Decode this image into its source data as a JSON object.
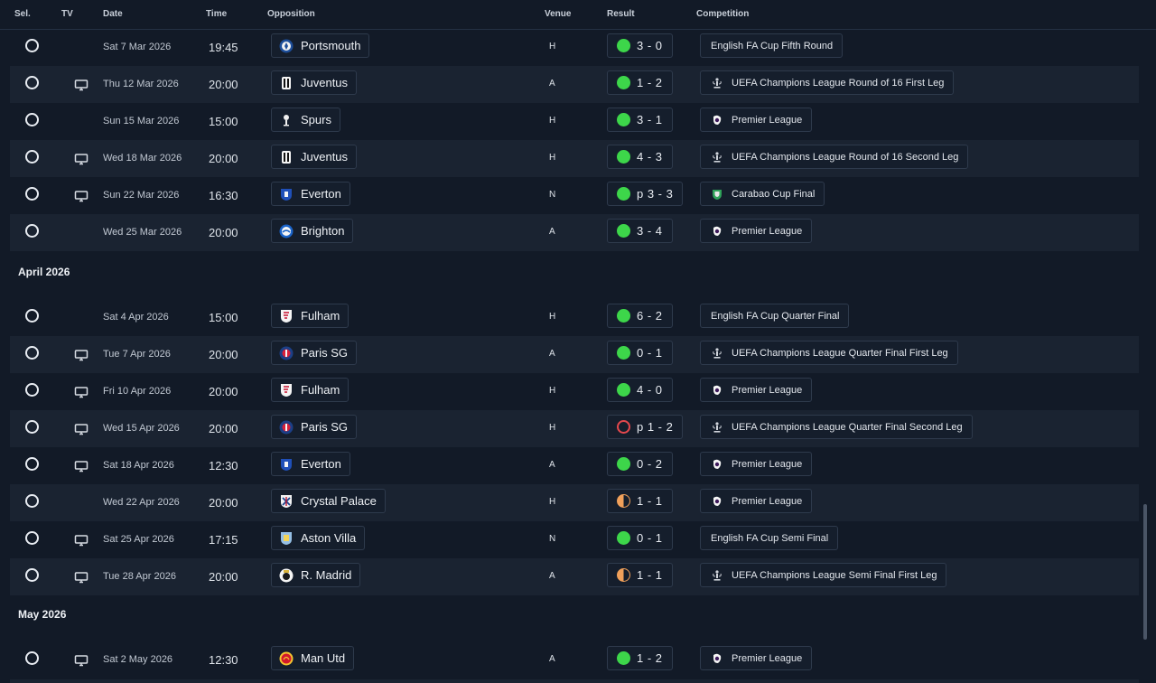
{
  "header": {
    "sel": "Sel.",
    "tv": "TV",
    "date": "Date",
    "time": "Time",
    "opposition": "Opposition",
    "venue": "Venue",
    "result": "Result",
    "competition": "Competition"
  },
  "months": [
    "April 2026",
    "May 2026"
  ],
  "colors": {
    "win": "#3dd64a",
    "loss": "#e5484d",
    "draw": "#f0a05a"
  },
  "fixtures": [
    {
      "tv": false,
      "date": "Sat 7 Mar 2026",
      "time": "19:45",
      "opponent": "Portsmouth",
      "crest": "portsmouth-crest",
      "venue": "H",
      "outcome": "win",
      "score": "3 - 0",
      "competition": "English FA Cup Fifth Round",
      "comp_icon": "none"
    },
    {
      "tv": true,
      "date": "Thu 12 Mar 2026",
      "time": "20:00",
      "opponent": "Juventus",
      "crest": "juventus-crest",
      "venue": "A",
      "outcome": "win",
      "score": "1 - 2",
      "competition": "UEFA Champions League Round of 16  First Leg",
      "comp_icon": "ucl"
    },
    {
      "tv": false,
      "date": "Sun 15 Mar 2026",
      "time": "15:00",
      "opponent": "Spurs",
      "crest": "spurs-crest",
      "venue": "H",
      "outcome": "win",
      "score": "3 - 1",
      "competition": "Premier League",
      "comp_icon": "pl"
    },
    {
      "tv": true,
      "date": "Wed 18 Mar 2026",
      "time": "20:00",
      "opponent": "Juventus",
      "crest": "juventus-crest",
      "venue": "H",
      "outcome": "win",
      "score": "4 - 3",
      "competition": "UEFA Champions League Round of 16  Second Leg",
      "comp_icon": "ucl"
    },
    {
      "tv": true,
      "date": "Sun 22 Mar 2026",
      "time": "16:30",
      "opponent": "Everton",
      "crest": "everton-crest",
      "venue": "N",
      "outcome": "win",
      "score": "p 3 - 3",
      "competition": "Carabao Cup Final",
      "comp_icon": "carabao"
    },
    {
      "tv": false,
      "date": "Wed 25 Mar 2026",
      "time": "20:00",
      "opponent": "Brighton",
      "crest": "brighton-crest",
      "venue": "A",
      "outcome": "win",
      "score": "3 - 4",
      "competition": "Premier League",
      "comp_icon": "pl"
    },
    {
      "tv": false,
      "date": "Sat 4 Apr 2026",
      "time": "15:00",
      "opponent": "Fulham",
      "crest": "fulham-crest",
      "venue": "H",
      "outcome": "win",
      "score": "6 - 2",
      "competition": "English FA Cup Quarter Final",
      "comp_icon": "none"
    },
    {
      "tv": true,
      "date": "Tue 7 Apr 2026",
      "time": "20:00",
      "opponent": "Paris SG",
      "crest": "psg-crest",
      "venue": "A",
      "outcome": "win",
      "score": "0 - 1",
      "competition": "UEFA Champions League Quarter Final First Leg",
      "comp_icon": "ucl"
    },
    {
      "tv": true,
      "date": "Fri 10 Apr 2026",
      "time": "20:00",
      "opponent": "Fulham",
      "crest": "fulham-crest",
      "venue": "H",
      "outcome": "win",
      "score": "4 - 0",
      "competition": "Premier League",
      "comp_icon": "pl"
    },
    {
      "tv": true,
      "date": "Wed 15 Apr 2026",
      "time": "20:00",
      "opponent": "Paris SG",
      "crest": "psg-crest",
      "venue": "H",
      "outcome": "loss",
      "score": "p 1 - 2",
      "competition": "UEFA Champions League Quarter Final Second Leg",
      "comp_icon": "ucl"
    },
    {
      "tv": true,
      "date": "Sat 18 Apr 2026",
      "time": "12:30",
      "opponent": "Everton",
      "crest": "everton-crest",
      "venue": "A",
      "outcome": "win",
      "score": "0 - 2",
      "competition": "Premier League",
      "comp_icon": "pl"
    },
    {
      "tv": false,
      "date": "Wed 22 Apr 2026",
      "time": "20:00",
      "opponent": "Crystal Palace",
      "crest": "crystal-palace-crest",
      "venue": "H",
      "outcome": "draw",
      "score": "1 - 1",
      "competition": "Premier League",
      "comp_icon": "pl"
    },
    {
      "tv": true,
      "date": "Sat 25 Apr 2026",
      "time": "17:15",
      "opponent": "Aston Villa",
      "crest": "aston-villa-crest",
      "venue": "N",
      "outcome": "win",
      "score": "0 - 1",
      "competition": "English FA Cup Semi Final",
      "comp_icon": "none"
    },
    {
      "tv": true,
      "date": "Tue 28 Apr 2026",
      "time": "20:00",
      "opponent": "R. Madrid",
      "crest": "real-madrid-crest",
      "venue": "A",
      "outcome": "draw",
      "score": "1 - 1",
      "competition": "UEFA Champions League Semi Final First Leg",
      "comp_icon": "ucl"
    },
    {
      "tv": true,
      "date": "Sat 2 May 2026",
      "time": "12:30",
      "opponent": "Man Utd",
      "crest": "man-utd-crest",
      "venue": "A",
      "outcome": "win",
      "score": "1 - 2",
      "competition": "Premier League",
      "comp_icon": "pl"
    }
  ]
}
